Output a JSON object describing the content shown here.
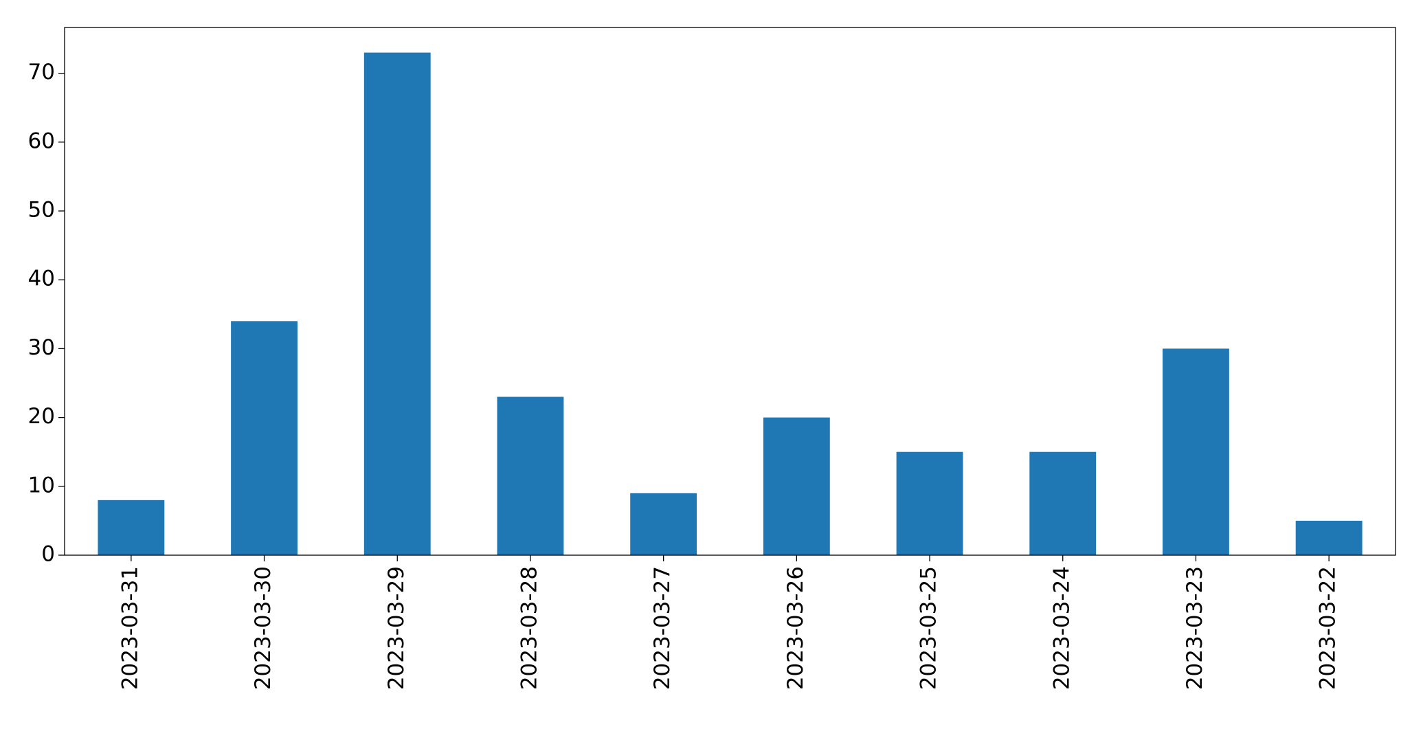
{
  "chart_data": {
    "type": "bar",
    "categories": [
      "2023-03-31",
      "2023-03-30",
      "2023-03-29",
      "2023-03-28",
      "2023-03-27",
      "2023-03-26",
      "2023-03-25",
      "2023-03-24",
      "2023-03-23",
      "2023-03-22"
    ],
    "values": [
      8,
      34,
      73,
      23,
      9,
      20,
      15,
      15,
      30,
      5
    ],
    "color": "#1f77b4",
    "ylim": [
      0,
      76.65
    ],
    "yticks": [
      0,
      10,
      20,
      30,
      40,
      50,
      60,
      70
    ],
    "grid": false
  }
}
